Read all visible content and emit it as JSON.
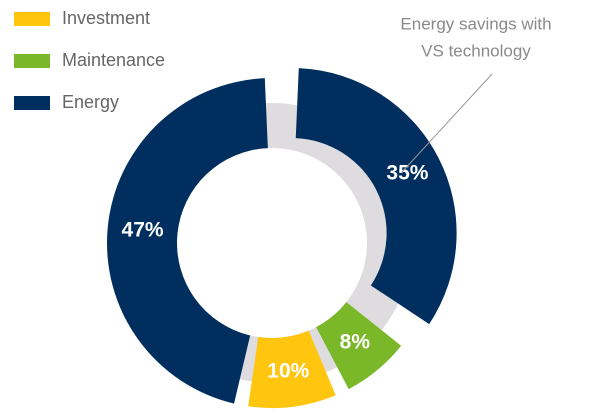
{
  "chart_data": {
    "type": "donut",
    "legend": [
      {
        "name": "Investment",
        "color": "#ffc50f"
      },
      {
        "name": "Maintenance",
        "color": "#7ab829"
      },
      {
        "name": "Energy",
        "color": "#002f5f"
      }
    ],
    "values": [
      35,
      8,
      10,
      47
    ],
    "value_labels": [
      "35%",
      "8%",
      "10%",
      "47%"
    ],
    "colors": [
      "#002f5f",
      "#7ab829",
      "#ffc50f",
      "#002f5f"
    ],
    "explode": [
      true,
      false,
      false,
      false
    ],
    "annotation": [
      "Energy savings with",
      "VS technology"
    ]
  }
}
